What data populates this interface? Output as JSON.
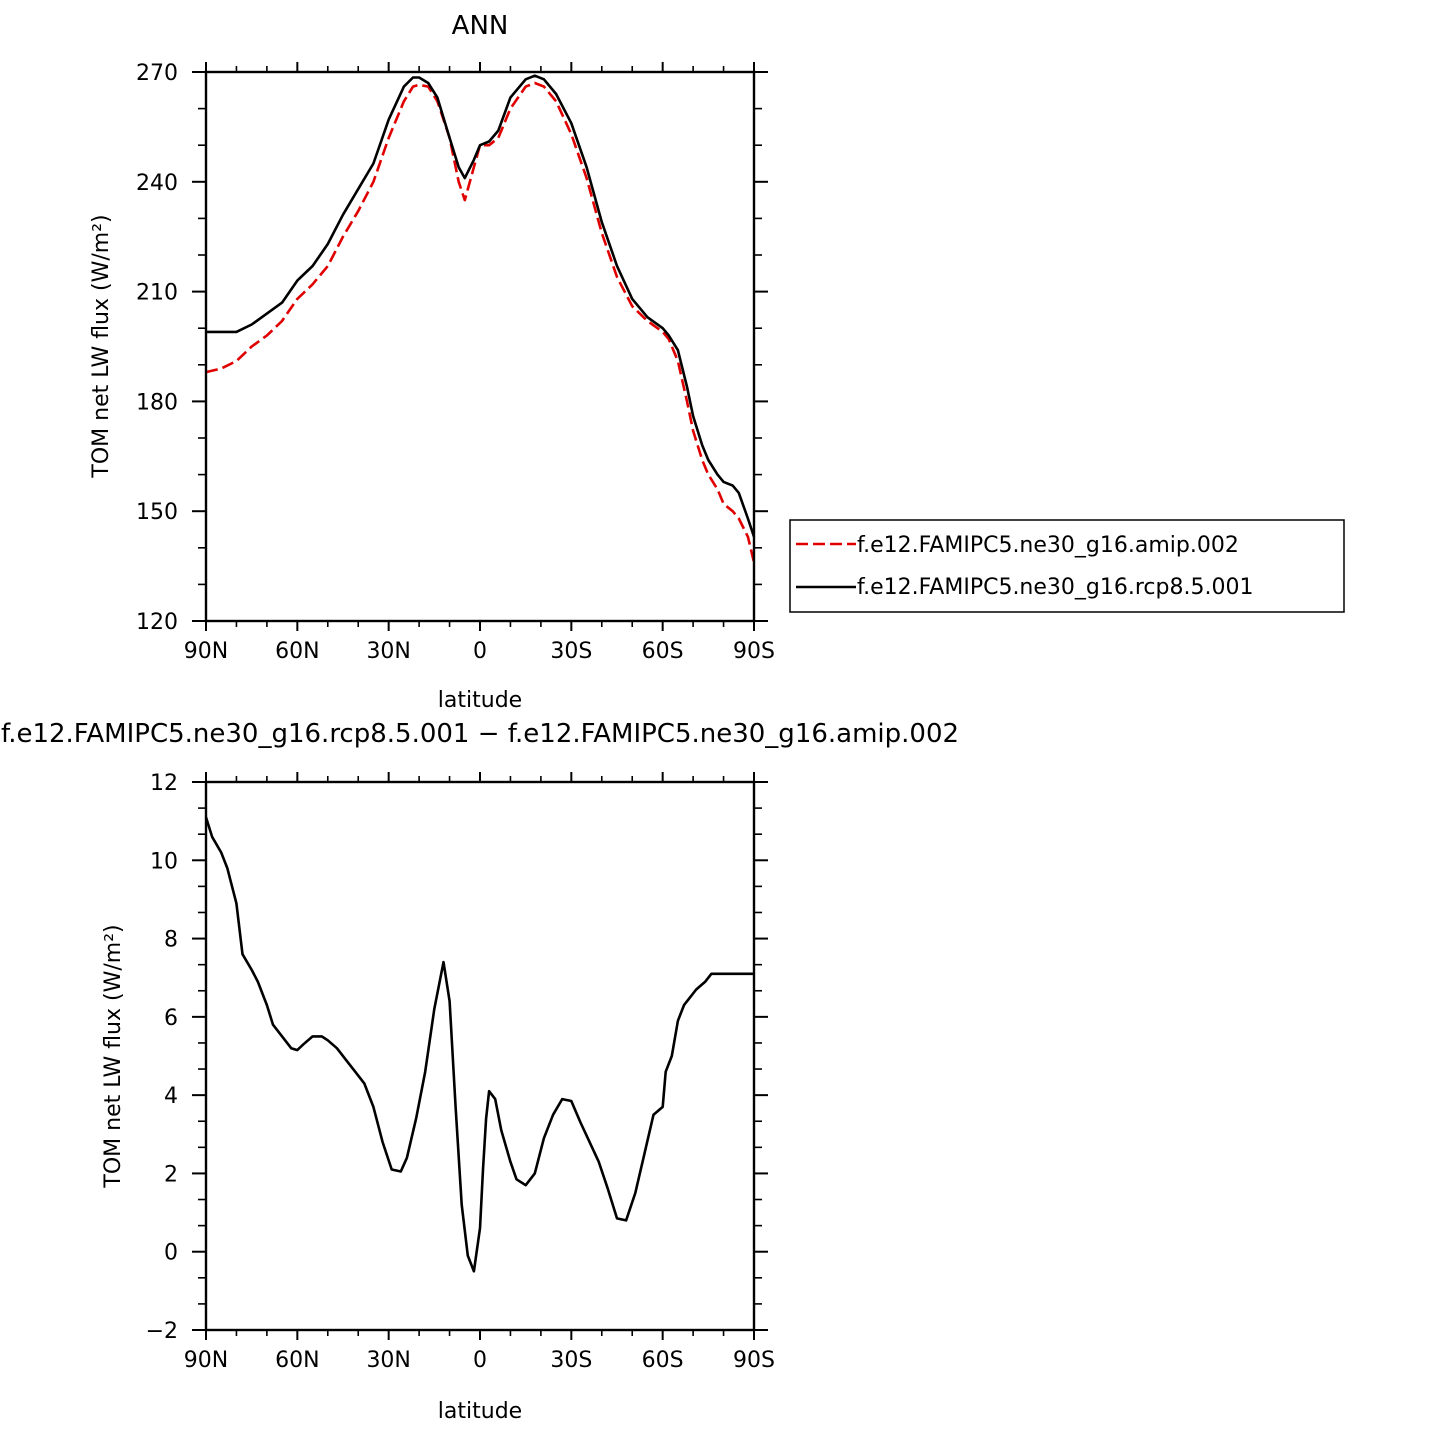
{
  "chart_data": [
    {
      "type": "line",
      "title": "ANN",
      "xlabel": "latitude",
      "ylabel": "TOM net LW flux (W/m²)",
      "xlim": [
        90,
        -90
      ],
      "ylim": [
        120,
        270
      ],
      "xticks": [
        90,
        60,
        30,
        0,
        -30,
        -60,
        -90
      ],
      "xtick_labels": [
        "90N",
        "60N",
        "30N",
        "0",
        "30S",
        "60S",
        "90S"
      ],
      "yticks": [
        120,
        150,
        180,
        210,
        240,
        270
      ],
      "ytick_labels": [
        "120",
        "150",
        "180",
        "210",
        "240",
        "270"
      ],
      "legend_position": "right",
      "series": [
        {
          "name": "f.e12.FAMIPC5.ne30_g16.amip.002",
          "color": "#e00000",
          "dash": "dashed",
          "x": [
            90,
            85,
            80,
            75,
            70,
            65,
            60,
            55,
            50,
            45,
            40,
            35,
            30,
            25,
            22,
            20,
            17,
            14,
            10,
            7,
            5,
            2,
            0,
            -3,
            -6,
            -10,
            -15,
            -18,
            -21,
            -25,
            -30,
            -35,
            -40,
            -45,
            -50,
            -55,
            -60,
            -62,
            -65,
            -68,
            -70,
            -73,
            -75,
            -78,
            -80,
            -83,
            -85,
            -88,
            -90
          ],
          "y": [
            188,
            189,
            191,
            195,
            198,
            202,
            208,
            212,
            217,
            225,
            232,
            240,
            252,
            262,
            266,
            266.5,
            266,
            262,
            252,
            240,
            235,
            244,
            250,
            250,
            252,
            260,
            266,
            267,
            266,
            262,
            253,
            241,
            226,
            214,
            206,
            202,
            199,
            197,
            191,
            180,
            172,
            164,
            160,
            156,
            152,
            150,
            148,
            143,
            136
          ]
        },
        {
          "name": "f.e12.FAMIPC5.ne30_g16.rcp8.5.001",
          "color": "#000000",
          "dash": "solid",
          "x": [
            90,
            85,
            80,
            75,
            70,
            65,
            60,
            55,
            50,
            45,
            40,
            35,
            30,
            25,
            22,
            20,
            17,
            14,
            10,
            7,
            5,
            2,
            0,
            -3,
            -6,
            -10,
            -15,
            -18,
            -21,
            -25,
            -30,
            -35,
            -40,
            -45,
            -50,
            -55,
            -60,
            -62,
            -65,
            -68,
            -70,
            -73,
            -75,
            -78,
            -80,
            -83,
            -85,
            -88,
            -90
          ],
          "y": [
            199,
            199,
            199,
            201,
            204,
            207,
            213,
            217,
            223,
            231,
            238,
            245,
            257,
            266,
            268.5,
            268.5,
            267,
            263,
            252,
            244,
            241,
            246,
            250,
            251,
            254,
            263,
            268,
            269,
            268,
            264,
            256,
            244,
            229,
            217,
            208,
            203,
            200,
            198,
            194,
            184,
            176,
            168,
            164,
            160,
            158,
            157,
            155,
            148,
            143
          ]
        }
      ]
    },
    {
      "type": "line",
      "title": "f.e12.FAMIPC5.ne30_g16.rcp8.5.001 − f.e12.FAMIPC5.ne30_g16.amip.002",
      "xlabel": "latitude",
      "ylabel": "TOM net LW flux (W/m²)",
      "xlim": [
        90,
        -90
      ],
      "ylim": [
        -2,
        12
      ],
      "xticks": [
        90,
        60,
        30,
        0,
        -30,
        -60,
        -90
      ],
      "xtick_labels": [
        "90N",
        "60N",
        "30N",
        "0",
        "30S",
        "60S",
        "90S"
      ],
      "yticks": [
        -2,
        0,
        2,
        4,
        6,
        8,
        10,
        12
      ],
      "ytick_labels": [
        "−2",
        "0",
        "2",
        "4",
        "6",
        "8",
        "10",
        "12"
      ],
      "series": [
        {
          "color": "#000000",
          "dash": "solid",
          "x": [
            90,
            88,
            85,
            83,
            80,
            78,
            75,
            73,
            70,
            68,
            65,
            62,
            60,
            58,
            55,
            52,
            50,
            47,
            44,
            41,
            38,
            35,
            32,
            29,
            26,
            24,
            21,
            18,
            15,
            12,
            10,
            8,
            6,
            4,
            2,
            0,
            -1,
            -2,
            -3,
            -5,
            -7,
            -10,
            -12,
            -15,
            -18,
            -21,
            -24,
            -27,
            -30,
            -33,
            -36,
            -39,
            -42,
            -45,
            -48,
            -51,
            -54,
            -57,
            -60,
            -61,
            -63,
            -65,
            -67,
            -69,
            -71,
            -74,
            -76,
            -79,
            -81,
            -84,
            -87,
            -90
          ],
          "y": [
            11.1,
            10.6,
            10.2,
            9.8,
            8.9,
            7.6,
            7.2,
            6.9,
            6.3,
            5.8,
            5.5,
            5.2,
            5.15,
            5.3,
            5.5,
            5.5,
            5.4,
            5.2,
            4.9,
            4.6,
            4.3,
            3.7,
            2.8,
            2.1,
            2.05,
            2.4,
            3.4,
            4.6,
            6.2,
            7.4,
            6.4,
            3.7,
            1.2,
            -0.1,
            -0.5,
            0.6,
            2.1,
            3.4,
            4.1,
            3.9,
            3.1,
            2.3,
            1.85,
            1.7,
            2.0,
            2.9,
            3.5,
            3.9,
            3.85,
            3.3,
            2.8,
            2.3,
            1.6,
            0.85,
            0.8,
            1.5,
            2.5,
            3.5,
            3.7,
            4.6,
            5.0,
            5.9,
            6.3,
            6.5,
            6.7,
            6.9,
            7.1,
            7.1,
            7.1,
            7.1,
            7.1,
            7.1
          ]
        }
      ]
    }
  ]
}
